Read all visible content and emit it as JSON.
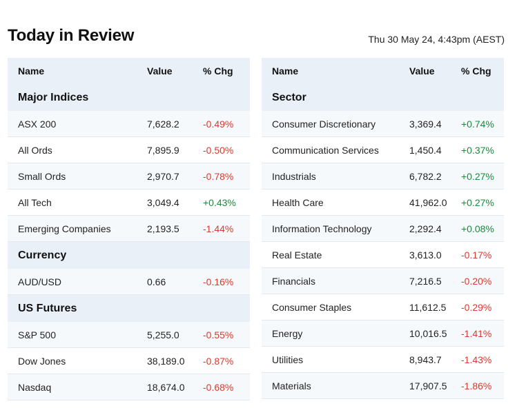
{
  "header": {
    "title": "Today in Review",
    "timestamp": "Thu 30 May 24, 4:43pm (AEST)"
  },
  "columns": {
    "name": "Name",
    "value": "Value",
    "chg": "% Chg"
  },
  "left_groups": [
    {
      "title": "Major Indices",
      "rows": [
        {
          "name": "ASX 200",
          "value": "7,628.2",
          "chg": "-0.49%",
          "dir": "neg"
        },
        {
          "name": "All Ords",
          "value": "7,895.9",
          "chg": "-0.50%",
          "dir": "neg"
        },
        {
          "name": "Small Ords",
          "value": "2,970.7",
          "chg": "-0.78%",
          "dir": "neg"
        },
        {
          "name": "All Tech",
          "value": "3,049.4",
          "chg": "+0.43%",
          "dir": "pos"
        },
        {
          "name": "Emerging Companies",
          "value": "2,193.5",
          "chg": "-1.44%",
          "dir": "neg"
        }
      ]
    },
    {
      "title": "Currency",
      "rows": [
        {
          "name": "AUD/USD",
          "value": "0.66",
          "chg": "-0.16%",
          "dir": "neg"
        }
      ]
    },
    {
      "title": "US Futures",
      "rows": [
        {
          "name": "S&P 500",
          "value": "5,255.0",
          "chg": "-0.55%",
          "dir": "neg"
        },
        {
          "name": "Dow Jones",
          "value": "38,189.0",
          "chg": "-0.87%",
          "dir": "neg"
        },
        {
          "name": "Nasdaq",
          "value": "18,674.0",
          "chg": "-0.68%",
          "dir": "neg"
        }
      ]
    }
  ],
  "right_groups": [
    {
      "title": "Sector",
      "rows": [
        {
          "name": "Consumer Discretionary",
          "value": "3,369.4",
          "chg": "+0.74%",
          "dir": "pos"
        },
        {
          "name": "Communication Services",
          "value": "1,450.4",
          "chg": "+0.37%",
          "dir": "pos"
        },
        {
          "name": "Industrials",
          "value": "6,782.2",
          "chg": "+0.27%",
          "dir": "pos"
        },
        {
          "name": "Health Care",
          "value": "41,962.0",
          "chg": "+0.27%",
          "dir": "pos"
        },
        {
          "name": "Information Technology",
          "value": "2,292.4",
          "chg": "+0.08%",
          "dir": "pos"
        },
        {
          "name": "Real Estate",
          "value": "3,613.0",
          "chg": "-0.17%",
          "dir": "neg"
        },
        {
          "name": "Financials",
          "value": "7,216.5",
          "chg": "-0.20%",
          "dir": "neg"
        },
        {
          "name": "Consumer Staples",
          "value": "11,612.5",
          "chg": "-0.29%",
          "dir": "neg"
        },
        {
          "name": "Energy",
          "value": "10,016.5",
          "chg": "-1.41%",
          "dir": "neg"
        },
        {
          "name": "Utilities",
          "value": "8,943.7",
          "chg": "-1.43%",
          "dir": "neg"
        },
        {
          "name": "Materials",
          "value": "17,907.5",
          "chg": "-1.86%",
          "dir": "neg"
        }
      ]
    }
  ],
  "colors": {
    "negative": "#d83a2e",
    "positive": "#1a8a3a",
    "header_bg": "#e9f0f8"
  }
}
